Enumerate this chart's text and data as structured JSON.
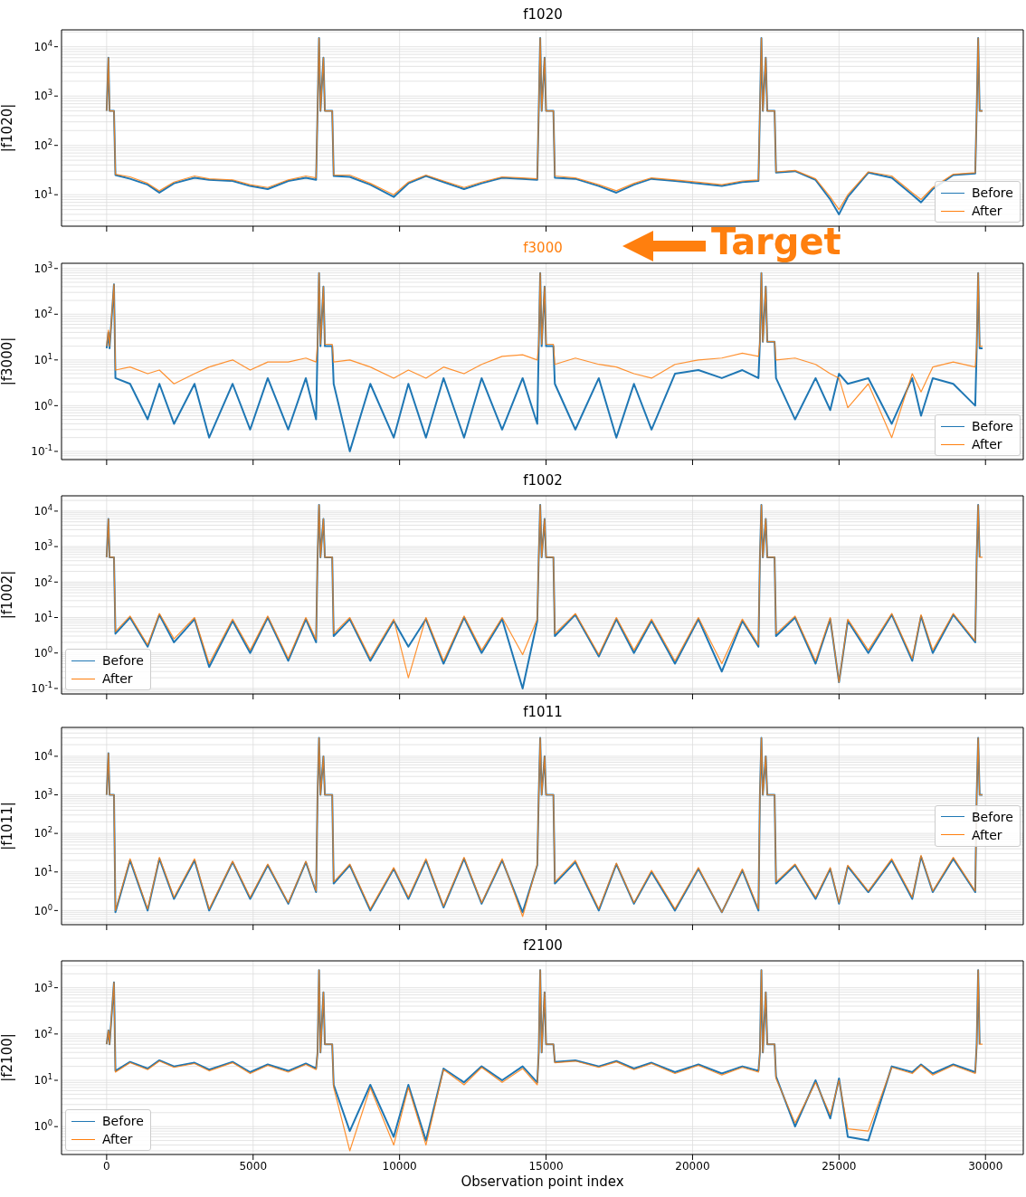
{
  "chart_data": [
    {
      "type": "line",
      "title": "f1020",
      "ylabel": "|f1020|",
      "log": "y",
      "grid": true,
      "legend": "bottom right",
      "tick_labels": "y",
      "xlim": [
        -1540,
        31290
      ],
      "ylim": [
        2.3,
        22000
      ],
      "xticks": [
        0,
        5000,
        10000,
        15000,
        20000,
        25000,
        30000
      ],
      "yticks": [
        {
          "value": 10,
          "label": "10$^{1}$"
        },
        {
          "value": 100,
          "label": "10$^{2}$"
        },
        {
          "value": 1000,
          "label": "10$^{3}$"
        },
        {
          "value": 10000,
          "label": "10$^{4}$"
        }
      ],
      "x": [
        0,
        60,
        100,
        250,
        300,
        800,
        1400,
        1800,
        2300,
        3000,
        3500,
        4300,
        4900,
        5500,
        6200,
        6800,
        7150,
        7200,
        7250,
        7300,
        7400,
        7450,
        7700,
        7750,
        8300,
        9000,
        9800,
        10300,
        10900,
        11500,
        12200,
        12800,
        13500,
        14200,
        14700,
        14750,
        14800,
        14850,
        14950,
        15000,
        15250,
        15300,
        16000,
        16800,
        17400,
        18000,
        18600,
        19400,
        20200,
        21000,
        21700,
        22250,
        22300,
        22350,
        22400,
        22500,
        22550,
        22800,
        22850,
        23500,
        24200,
        24700,
        25000,
        25300,
        26000,
        26800,
        27500,
        27800,
        28200,
        28900,
        29650,
        29700,
        29750,
        29800,
        29900
      ],
      "series": [
        {
          "name": "Before",
          "color": "#1f77b4",
          "values": [
            500,
            6000,
            500,
            500,
            25,
            21,
            16,
            11,
            17,
            22,
            20,
            19,
            15,
            13,
            19,
            22,
            20,
            500,
            15000,
            500,
            6000,
            500,
            500,
            24,
            23,
            16,
            9,
            17,
            24,
            18,
            13,
            17,
            22,
            21,
            20,
            500,
            15000,
            500,
            6000,
            500,
            500,
            22,
            21,
            15,
            11,
            16,
            21,
            19,
            17,
            15,
            18,
            19,
            500,
            15000,
            500,
            6000,
            500,
            500,
            28,
            30,
            20,
            8,
            4,
            9,
            28,
            22,
            10,
            7,
            13,
            25,
            27,
            500,
            15000,
            500,
            500
          ]
        },
        {
          "name": "After",
          "color": "#ff7f0e",
          "values": [
            500,
            6000,
            500,
            500,
            26,
            23,
            17,
            12,
            18,
            24,
            21,
            20,
            16,
            14,
            20,
            24,
            22,
            500,
            15000,
            500,
            6000,
            500,
            500,
            25,
            25,
            17,
            10,
            18,
            25,
            19,
            14,
            18,
            23,
            22,
            21,
            500,
            15000,
            500,
            6000,
            500,
            500,
            24,
            22,
            16,
            12,
            17,
            22,
            20,
            18,
            16,
            19,
            20,
            500,
            15000,
            500,
            6000,
            500,
            500,
            29,
            31,
            21,
            9,
            5,
            10,
            29,
            24,
            11,
            8,
            14,
            26,
            28,
            500,
            15000,
            500,
            500
          ]
        }
      ]
    },
    {
      "type": "line",
      "title": "f3000",
      "ylabel": "|f3000|",
      "annotations": [
        "Target"
      ],
      "log": "y",
      "grid": true,
      "legend": "bottom right",
      "tick_labels": "y",
      "xlim": [
        -1540,
        31290
      ],
      "ylim": [
        0.066,
        1300
      ],
      "xticks": [
        0,
        5000,
        10000,
        15000,
        20000,
        25000,
        30000
      ],
      "yticks": [
        {
          "value": 0.1,
          "label": "10$^{-1}$"
        },
        {
          "value": 1,
          "label": "10$^{0}$"
        },
        {
          "value": 10,
          "label": "10$^{1}$"
        },
        {
          "value": 100,
          "label": "10$^{2}$"
        },
        {
          "value": 1000,
          "label": "10$^{3}$"
        }
      ],
      "x": [
        0,
        60,
        100,
        250,
        300,
        800,
        1400,
        1800,
        2300,
        3000,
        3500,
        4300,
        4900,
        5500,
        6200,
        6800,
        7150,
        7200,
        7250,
        7300,
        7400,
        7450,
        7700,
        7750,
        8300,
        9000,
        9800,
        10300,
        10900,
        11500,
        12200,
        12800,
        13500,
        14200,
        14700,
        14750,
        14800,
        14850,
        14950,
        15000,
        15250,
        15300,
        16000,
        16800,
        17400,
        18000,
        18600,
        19400,
        20200,
        21000,
        21700,
        22250,
        22300,
        22350,
        22400,
        22500,
        22550,
        22800,
        22850,
        23500,
        24200,
        24700,
        25000,
        25300,
        26000,
        26800,
        27500,
        27800,
        28200,
        28900,
        29650,
        29700,
        29750,
        29800,
        29900
      ],
      "series": [
        {
          "name": "Before",
          "color": "#1f77b4",
          "values": [
            18,
            40,
            18,
            450,
            4,
            3,
            0.5,
            3,
            0.4,
            3,
            0.2,
            3,
            0.3,
            4,
            0.3,
            4,
            0.5,
            20,
            800,
            20,
            400,
            20,
            20,
            3,
            0.1,
            3,
            0.2,
            3,
            0.2,
            4,
            0.2,
            4,
            0.3,
            4,
            0.4,
            20,
            800,
            20,
            400,
            20,
            20,
            3,
            0.3,
            4,
            0.2,
            3,
            0.3,
            5,
            6,
            4,
            6,
            4,
            25,
            800,
            25,
            400,
            25,
            25,
            4,
            0.5,
            4,
            0.8,
            5,
            3,
            4,
            0.4,
            4,
            0.6,
            4,
            3,
            1,
            18,
            800,
            18,
            18
          ]
        },
        {
          "name": "After",
          "color": "#ff7f0e",
          "values": [
            20,
            45,
            20,
            450,
            6,
            7,
            5,
            6,
            3,
            5,
            7,
            10,
            6,
            9,
            9,
            11,
            9,
            22,
            800,
            22,
            400,
            22,
            22,
            9,
            10,
            7,
            4,
            6,
            4,
            7,
            5,
            8,
            12,
            13,
            10,
            22,
            800,
            22,
            400,
            22,
            22,
            8,
            11,
            8,
            7,
            5,
            4,
            8,
            10,
            11,
            14,
            12,
            25,
            800,
            25,
            400,
            25,
            25,
            10,
            11,
            8,
            5,
            4,
            0.9,
            3,
            0.2,
            5,
            2,
            7,
            9,
            7,
            20,
            800,
            20,
            20
          ]
        }
      ]
    },
    {
      "type": "line",
      "title": "f1002",
      "ylabel": "|f1002|",
      "log": "y",
      "grid": true,
      "legend": "bottom left",
      "tick_labels": "y",
      "xlim": [
        -1540,
        31290
      ],
      "ylim": [
        0.07,
        27000
      ],
      "xticks": [
        0,
        5000,
        10000,
        15000,
        20000,
        25000,
        30000
      ],
      "yticks": [
        {
          "value": 0.1,
          "label": "10$^{-1}$"
        },
        {
          "value": 1,
          "label": "10$^{0}$"
        },
        {
          "value": 10,
          "label": "10$^{1}$"
        },
        {
          "value": 100,
          "label": "10$^{2}$"
        },
        {
          "value": 1000,
          "label": "10$^{3}$"
        },
        {
          "value": 10000,
          "label": "10$^{4}$"
        }
      ],
      "x": [
        0,
        60,
        100,
        250,
        300,
        800,
        1400,
        1800,
        2300,
        3000,
        3500,
        4300,
        4900,
        5500,
        6200,
        6800,
        7150,
        7200,
        7250,
        7300,
        7400,
        7450,
        7700,
        7750,
        8300,
        9000,
        9800,
        10300,
        10900,
        11500,
        12200,
        12800,
        13500,
        14200,
        14700,
        14750,
        14800,
        14850,
        14950,
        15000,
        15250,
        15300,
        16000,
        16800,
        17400,
        18000,
        18600,
        19400,
        20200,
        21000,
        21700,
        22250,
        22300,
        22350,
        22400,
        22500,
        22550,
        22800,
        22850,
        23500,
        24200,
        24700,
        25000,
        25300,
        26000,
        26800,
        27500,
        27800,
        28200,
        28900,
        29650,
        29700,
        29750,
        29800,
        29900
      ],
      "series": [
        {
          "name": "Before",
          "color": "#1f77b4",
          "values": [
            500,
            6000,
            500,
            500,
            3.5,
            10,
            1.5,
            12,
            2,
            9,
            0.4,
            8,
            1,
            10,
            0.6,
            9,
            2,
            500,
            15000,
            500,
            6000,
            500,
            500,
            3,
            9,
            0.6,
            8,
            1.5,
            9,
            0.5,
            10,
            1,
            9,
            0.1,
            8,
            500,
            15000,
            500,
            6000,
            500,
            500,
            3,
            12,
            0.8,
            9,
            1,
            8,
            0.5,
            9,
            0.3,
            8,
            1.5,
            500,
            15000,
            500,
            6000,
            500,
            500,
            3,
            10,
            0.5,
            9,
            0.15,
            8,
            1,
            12,
            0.6,
            11,
            1,
            12,
            2,
            500,
            15000,
            500,
            null
          ]
        },
        {
          "name": "After",
          "color": "#ff7f0e",
          "values": [
            500,
            6000,
            500,
            500,
            4,
            11,
            1.7,
            13,
            2.5,
            10,
            0.5,
            9,
            1.2,
            11,
            0.7,
            10,
            2.4,
            500,
            15000,
            500,
            6000,
            500,
            500,
            3.5,
            10,
            0.7,
            9,
            0.2,
            10,
            0.6,
            11,
            1.2,
            10,
            0.9,
            9,
            500,
            15000,
            500,
            6000,
            500,
            500,
            3.5,
            13,
            0.9,
            10,
            1.2,
            9,
            0.6,
            10,
            0.5,
            9,
            1.7,
            500,
            15000,
            500,
            6000,
            500,
            500,
            3.5,
            11,
            0.6,
            10,
            0.15,
            9,
            1.2,
            13,
            0.7,
            12,
            1.2,
            13,
            2.2,
            500,
            15000,
            500,
            500
          ]
        }
      ]
    },
    {
      "type": "line",
      "title": "f1011",
      "ylabel": "|f1011|",
      "log": "y",
      "grid": true,
      "legend": "right",
      "tick_labels": "y",
      "xlim": [
        -1540,
        31290
      ],
      "ylim": [
        0.43,
        56000
      ],
      "xticks": [
        0,
        5000,
        10000,
        15000,
        20000,
        25000,
        30000
      ],
      "yticks": [
        {
          "value": 1,
          "label": "10$^{0}$"
        },
        {
          "value": 10,
          "label": "10$^{1}$"
        },
        {
          "value": 100,
          "label": "10$^{2}$"
        },
        {
          "value": 1000,
          "label": "10$^{3}$"
        },
        {
          "value": 10000,
          "label": "10$^{4}$"
        }
      ],
      "x": [
        0,
        60,
        100,
        250,
        300,
        800,
        1400,
        1800,
        2300,
        3000,
        3500,
        4300,
        4900,
        5500,
        6200,
        6800,
        7150,
        7200,
        7250,
        7300,
        7400,
        7450,
        7700,
        7750,
        8300,
        9000,
        9800,
        10300,
        10900,
        11500,
        12200,
        12800,
        13500,
        14200,
        14700,
        14750,
        14800,
        14850,
        14950,
        15000,
        15250,
        15300,
        16000,
        16800,
        17400,
        18000,
        18600,
        19400,
        20200,
        21000,
        21700,
        22250,
        22300,
        22350,
        22400,
        22500,
        22550,
        22800,
        22850,
        23500,
        24200,
        24700,
        25000,
        25300,
        26000,
        26800,
        27500,
        27800,
        28200,
        28900,
        29650,
        29700,
        29750,
        29800,
        29900
      ],
      "series": [
        {
          "name": "Before",
          "color": "#1f77b4",
          "values": [
            1000,
            12000,
            1000,
            1000,
            0.9,
            20,
            1,
            22,
            2,
            20,
            1,
            18,
            2,
            15,
            1.5,
            18,
            3,
            1000,
            30000,
            1000,
            10000,
            1000,
            1000,
            5,
            15,
            1,
            12,
            2,
            20,
            1.2,
            22,
            1.5,
            20,
            0.9,
            15,
            1000,
            30000,
            1000,
            10000,
            1000,
            1000,
            5,
            18,
            1,
            16,
            1.5,
            10,
            1,
            12,
            0.9,
            11,
            1,
            1000,
            30000,
            1000,
            10000,
            1000,
            1000,
            5,
            15,
            2,
            12,
            1.5,
            14,
            3,
            20,
            2,
            25,
            3,
            22,
            3,
            1000,
            30000,
            1000,
            1000
          ]
        },
        {
          "name": "After",
          "color": "#ff7f0e",
          "values": [
            1000,
            12000,
            1000,
            1000,
            1,
            22,
            1.1,
            24,
            2.2,
            22,
            1.1,
            19,
            2.2,
            16,
            1.6,
            19,
            3.2,
            1000,
            30000,
            1000,
            10000,
            1000,
            1000,
            5.5,
            16,
            1.1,
            13,
            2.2,
            22,
            1.3,
            24,
            1.6,
            22,
            0.7,
            16,
            1000,
            30000,
            1000,
            10000,
            1000,
            1000,
            5.5,
            20,
            1.1,
            17,
            1.6,
            11,
            1.1,
            13,
            0.9,
            12,
            1.1,
            1000,
            30000,
            1000,
            10000,
            1000,
            1000,
            5.5,
            16,
            2.2,
            13,
            1.6,
            15,
            3.2,
            22,
            2.2,
            27,
            3.2,
            24,
            3.2,
            1000,
            30000,
            1000,
            1000
          ]
        }
      ]
    },
    {
      "type": "line",
      "title": "f2100",
      "ylabel": "|f2100|",
      "xlabel": "Observation point index",
      "log": "y",
      "grid": true,
      "legend": "bottom left",
      "xlim": [
        -1540,
        31290
      ],
      "ylim": [
        0.25,
        3800
      ],
      "xticks": [
        0,
        5000,
        10000,
        15000,
        20000,
        25000,
        30000
      ],
      "yticks": [
        {
          "value": 1,
          "label": "10$^{0}$"
        },
        {
          "value": 10,
          "label": "10$^{1}$"
        },
        {
          "value": 100,
          "label": "10$^{2}$"
        },
        {
          "value": 1000,
          "label": "10$^{3}$"
        }
      ],
      "x": [
        0,
        60,
        100,
        250,
        300,
        800,
        1400,
        1800,
        2300,
        3000,
        3500,
        4300,
        4900,
        5500,
        6200,
        6800,
        7150,
        7200,
        7250,
        7300,
        7400,
        7450,
        7700,
        7750,
        8300,
        9000,
        9800,
        10300,
        10900,
        11500,
        12200,
        12800,
        13500,
        14200,
        14700,
        14750,
        14800,
        14850,
        14950,
        15000,
        15250,
        15300,
        16000,
        16800,
        17400,
        18000,
        18600,
        19400,
        20200,
        21000,
        21700,
        22250,
        22300,
        22350,
        22400,
        22500,
        22550,
        22800,
        22850,
        23500,
        24200,
        24700,
        25000,
        25300,
        26000,
        26800,
        27500,
        27800,
        28200,
        28900,
        29650,
        29700,
        29750,
        29800,
        29900
      ],
      "series": [
        {
          "name": "Before",
          "color": "#1f77b4",
          "values": [
            60,
            120,
            60,
            1300,
            16,
            25,
            18,
            27,
            20,
            24,
            17,
            25,
            15,
            22,
            16,
            23,
            18,
            40,
            2400,
            40,
            800,
            60,
            60,
            8,
            0.8,
            8,
            0.6,
            8,
            0.5,
            18,
            9,
            20,
            10,
            20,
            9,
            40,
            2400,
            40,
            800,
            60,
            60,
            25,
            27,
            20,
            26,
            18,
            24,
            15,
            22,
            14,
            20,
            16,
            40,
            2400,
            40,
            800,
            60,
            60,
            12,
            1,
            10,
            1.5,
            11,
            0.6,
            0.5,
            20,
            15,
            22,
            14,
            22,
            15,
            60,
            2400,
            60,
            null
          ]
        },
        {
          "name": "After",
          "color": "#ff7f0e",
          "values": [
            60,
            120,
            60,
            1300,
            15,
            24,
            17,
            26,
            19,
            23,
            16,
            24,
            14,
            21,
            15,
            22,
            17,
            40,
            2400,
            40,
            800,
            60,
            60,
            7,
            0.3,
            7,
            0.4,
            7,
            0.4,
            17,
            8,
            19,
            9,
            18,
            8,
            40,
            2400,
            40,
            800,
            60,
            60,
            24,
            26,
            19,
            25,
            17,
            23,
            14,
            21,
            13,
            19,
            15,
            40,
            2400,
            40,
            800,
            60,
            60,
            11,
            1.2,
            9,
            1.8,
            10,
            0.9,
            0.8,
            19,
            14,
            21,
            13,
            21,
            14,
            60,
            2400,
            60,
            60
          ]
        }
      ]
    }
  ]
}
